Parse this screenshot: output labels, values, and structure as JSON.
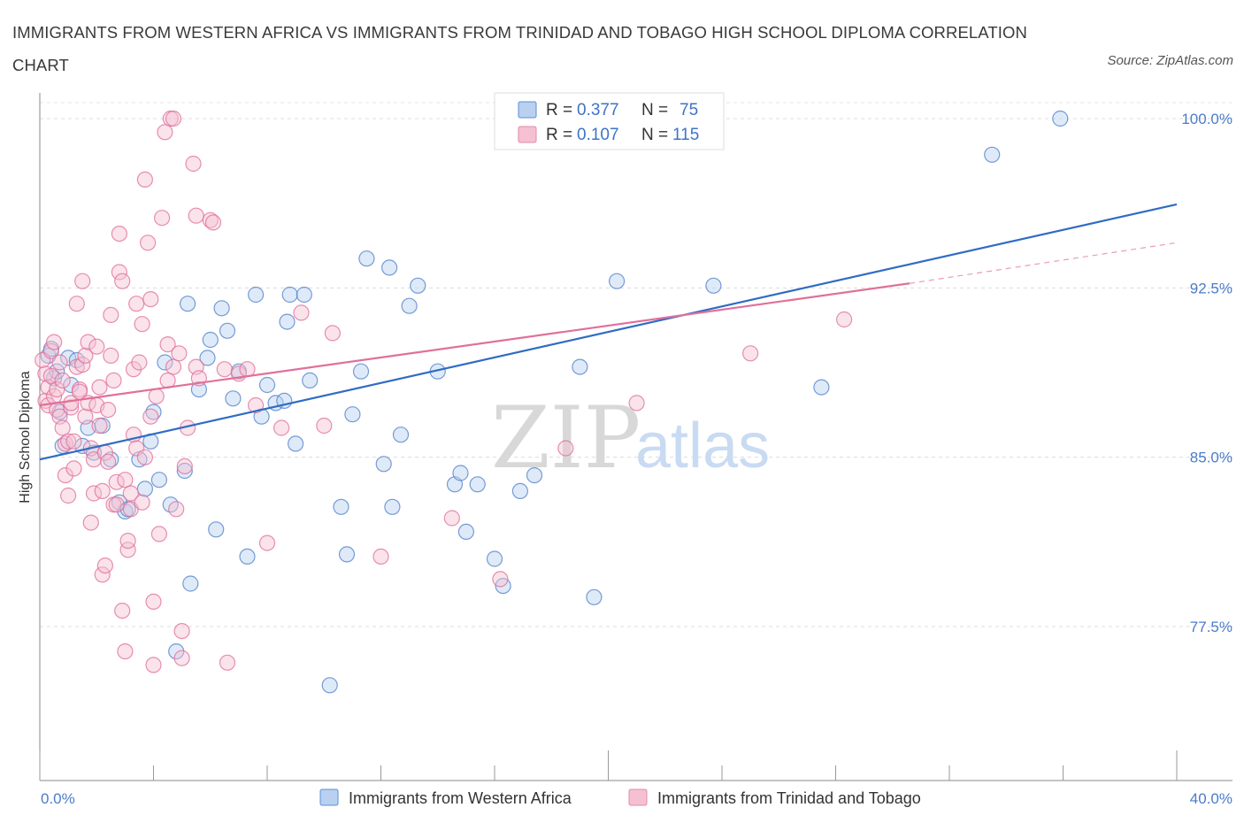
{
  "header": {
    "title": "IMMIGRANTS FROM WESTERN AFRICA VS IMMIGRANTS FROM TRINIDAD AND TOBAGO HIGH SCHOOL DIPLOMA CORRELATION CHART",
    "source": "Source: ZipAtlas.com"
  },
  "watermark": {
    "zip": "ZIP",
    "atlas": "atlas"
  },
  "colors": {
    "blue": "#4a7cc9",
    "blue_fill": "#b9d0f0",
    "blue_line": "#2f6cc4",
    "pink": "#e06b97",
    "pink_fill": "#f5c0d2",
    "pink_line": "#e0709a"
  },
  "legend": {
    "r_label": "R =",
    "n_label": "N =",
    "rows": [
      {
        "r": "0.377",
        "n": "75"
      },
      {
        "r": "0.107",
        "n": "115"
      }
    ]
  },
  "chart_data": {
    "type": "scatter",
    "ylabel": "High School Diploma",
    "xlim": [
      0,
      40
    ],
    "ylim": [
      70.0,
      101.0
    ],
    "x_tick_labels": [
      "0.0%",
      "40.0%"
    ],
    "y_ticks": [
      77.5,
      85.0,
      92.5,
      100.0
    ],
    "y_tick_labels": [
      "77.5%",
      "85.0%",
      "92.5%",
      "100.0%"
    ],
    "grid": true,
    "legend_position": "bottom",
    "series": [
      {
        "name": "Immigrants from Western Africa",
        "color": "blue",
        "trend": {
          "x": [
            0,
            40
          ],
          "y": [
            84.9,
            96.2
          ]
        },
        "points": [
          [
            0.3,
            89.5
          ],
          [
            0.4,
            89.8
          ],
          [
            0.5,
            88.5
          ],
          [
            0.6,
            88.8
          ],
          [
            0.7,
            87.0
          ],
          [
            0.8,
            85.5
          ],
          [
            1.0,
            89.4
          ],
          [
            1.1,
            88.2
          ],
          [
            1.3,
            89.3
          ],
          [
            1.5,
            85.5
          ],
          [
            1.7,
            86.3
          ],
          [
            1.9,
            85.2
          ],
          [
            2.2,
            86.4
          ],
          [
            2.5,
            84.9
          ],
          [
            2.8,
            83.0
          ],
          [
            3.0,
            82.6
          ],
          [
            3.1,
            82.7
          ],
          [
            3.5,
            84.9
          ],
          [
            3.7,
            83.6
          ],
          [
            3.9,
            85.7
          ],
          [
            4.0,
            87.0
          ],
          [
            4.2,
            84.0
          ],
          [
            4.4,
            89.2
          ],
          [
            4.6,
            82.9
          ],
          [
            4.8,
            76.4
          ],
          [
            5.1,
            84.4
          ],
          [
            5.2,
            91.8
          ],
          [
            5.3,
            79.4
          ],
          [
            5.6,
            88.0
          ],
          [
            5.9,
            89.4
          ],
          [
            6.0,
            90.2
          ],
          [
            6.2,
            81.8
          ],
          [
            6.4,
            91.6
          ],
          [
            6.6,
            90.6
          ],
          [
            6.8,
            87.6
          ],
          [
            7.0,
            88.8
          ],
          [
            7.3,
            80.6
          ],
          [
            7.6,
            92.2
          ],
          [
            7.8,
            86.8
          ],
          [
            8.0,
            88.2
          ],
          [
            8.3,
            87.4
          ],
          [
            8.6,
            87.5
          ],
          [
            8.7,
            91.0
          ],
          [
            8.8,
            92.2
          ],
          [
            9.0,
            85.6
          ],
          [
            9.3,
            92.2
          ],
          [
            9.5,
            88.4
          ],
          [
            10.2,
            74.9
          ],
          [
            10.6,
            82.8
          ],
          [
            10.8,
            80.7
          ],
          [
            11.0,
            86.9
          ],
          [
            11.3,
            88.8
          ],
          [
            11.5,
            93.8
          ],
          [
            12.1,
            84.7
          ],
          [
            12.3,
            93.4
          ],
          [
            12.4,
            82.8
          ],
          [
            12.7,
            86.0
          ],
          [
            13.0,
            91.7
          ],
          [
            13.3,
            92.6
          ],
          [
            14.0,
            88.8
          ],
          [
            14.6,
            83.8
          ],
          [
            14.8,
            84.3
          ],
          [
            15.0,
            81.7
          ],
          [
            15.4,
            83.8
          ],
          [
            16.0,
            80.5
          ],
          [
            16.3,
            79.3
          ],
          [
            16.9,
            83.5
          ],
          [
            17.4,
            84.2
          ],
          [
            19.0,
            89.0
          ],
          [
            19.5,
            78.8
          ],
          [
            20.3,
            92.8
          ],
          [
            23.7,
            92.6
          ],
          [
            27.5,
            88.1
          ],
          [
            33.5,
            98.4
          ],
          [
            35.9,
            100.0
          ]
        ]
      },
      {
        "name": "Immigrants from Trinidad and Tobago",
        "color": "pink",
        "trend": {
          "x": [
            0,
            30.6
          ],
          "y": [
            87.3,
            92.7
          ]
        },
        "trend_extension": {
          "x": [
            30.6,
            40
          ],
          "y": [
            92.7,
            94.5
          ]
        },
        "points": [
          [
            0.1,
            89.3
          ],
          [
            0.2,
            88.7
          ],
          [
            0.2,
            87.5
          ],
          [
            0.3,
            88.1
          ],
          [
            0.3,
            87.3
          ],
          [
            0.4,
            88.6
          ],
          [
            0.4,
            89.7
          ],
          [
            0.5,
            87.7
          ],
          [
            0.5,
            90.1
          ],
          [
            0.6,
            88.0
          ],
          [
            0.6,
            87.1
          ],
          [
            0.7,
            89.2
          ],
          [
            0.7,
            86.8
          ],
          [
            0.8,
            88.4
          ],
          [
            0.8,
            86.3
          ],
          [
            0.9,
            85.6
          ],
          [
            0.9,
            84.2
          ],
          [
            1.0,
            83.3
          ],
          [
            1.0,
            85.7
          ],
          [
            1.1,
            87.2
          ],
          [
            1.1,
            87.4
          ],
          [
            1.2,
            84.5
          ],
          [
            1.2,
            85.7
          ],
          [
            1.3,
            91.8
          ],
          [
            1.3,
            89.0
          ],
          [
            1.4,
            88.0
          ],
          [
            1.4,
            87.9
          ],
          [
            1.5,
            89.1
          ],
          [
            1.5,
            92.8
          ],
          [
            1.6,
            86.8
          ],
          [
            1.6,
            89.5
          ],
          [
            1.7,
            90.1
          ],
          [
            1.7,
            87.4
          ],
          [
            1.8,
            85.4
          ],
          [
            1.8,
            82.1
          ],
          [
            1.9,
            84.9
          ],
          [
            1.9,
            83.4
          ],
          [
            2.0,
            89.9
          ],
          [
            2.0,
            87.3
          ],
          [
            2.1,
            88.1
          ],
          [
            2.1,
            86.4
          ],
          [
            2.2,
            83.5
          ],
          [
            2.2,
            79.8
          ],
          [
            2.3,
            80.2
          ],
          [
            2.3,
            85.2
          ],
          [
            2.4,
            87.1
          ],
          [
            2.4,
            84.8
          ],
          [
            2.5,
            91.3
          ],
          [
            2.5,
            89.5
          ],
          [
            2.6,
            88.4
          ],
          [
            2.6,
            82.9
          ],
          [
            2.7,
            83.9
          ],
          [
            2.7,
            82.9
          ],
          [
            2.8,
            94.9
          ],
          [
            2.8,
            93.2
          ],
          [
            2.9,
            78.2
          ],
          [
            2.9,
            92.8
          ],
          [
            3.0,
            84.0
          ],
          [
            3.0,
            76.4
          ],
          [
            3.1,
            80.9
          ],
          [
            3.1,
            81.3
          ],
          [
            3.2,
            83.4
          ],
          [
            3.2,
            82.7
          ],
          [
            3.3,
            88.9
          ],
          [
            3.3,
            86.0
          ],
          [
            3.4,
            91.8
          ],
          [
            3.4,
            85.4
          ],
          [
            3.5,
            89.2
          ],
          [
            3.6,
            83.0
          ],
          [
            3.6,
            90.9
          ],
          [
            3.7,
            97.3
          ],
          [
            3.7,
            85.0
          ],
          [
            3.8,
            94.5
          ],
          [
            3.9,
            92.0
          ],
          [
            3.9,
            86.8
          ],
          [
            4.0,
            78.6
          ],
          [
            4.0,
            75.8
          ],
          [
            4.1,
            87.7
          ],
          [
            4.2,
            81.6
          ],
          [
            4.3,
            95.6
          ],
          [
            4.4,
            99.4
          ],
          [
            4.5,
            88.4
          ],
          [
            4.5,
            90.0
          ],
          [
            4.6,
            100.0
          ],
          [
            4.7,
            100.0
          ],
          [
            4.7,
            89.0
          ],
          [
            4.8,
            82.7
          ],
          [
            4.9,
            89.6
          ],
          [
            5.0,
            77.3
          ],
          [
            5.0,
            76.1
          ],
          [
            5.1,
            84.6
          ],
          [
            5.2,
            86.3
          ],
          [
            5.4,
            98.0
          ],
          [
            5.5,
            89.0
          ],
          [
            5.5,
            95.7
          ],
          [
            5.6,
            88.5
          ],
          [
            6.0,
            95.5
          ],
          [
            6.1,
            95.4
          ],
          [
            6.5,
            88.9
          ],
          [
            6.6,
            75.9
          ],
          [
            7.0,
            88.7
          ],
          [
            7.3,
            88.9
          ],
          [
            7.6,
            87.3
          ],
          [
            8.0,
            81.2
          ],
          [
            8.5,
            86.3
          ],
          [
            9.2,
            91.4
          ],
          [
            10.0,
            86.4
          ],
          [
            10.3,
            90.5
          ],
          [
            12.0,
            80.6
          ],
          [
            14.5,
            82.3
          ],
          [
            16.2,
            79.6
          ],
          [
            18.5,
            85.4
          ],
          [
            21.0,
            87.4
          ],
          [
            25.0,
            89.6
          ],
          [
            28.3,
            91.1
          ]
        ]
      }
    ]
  }
}
